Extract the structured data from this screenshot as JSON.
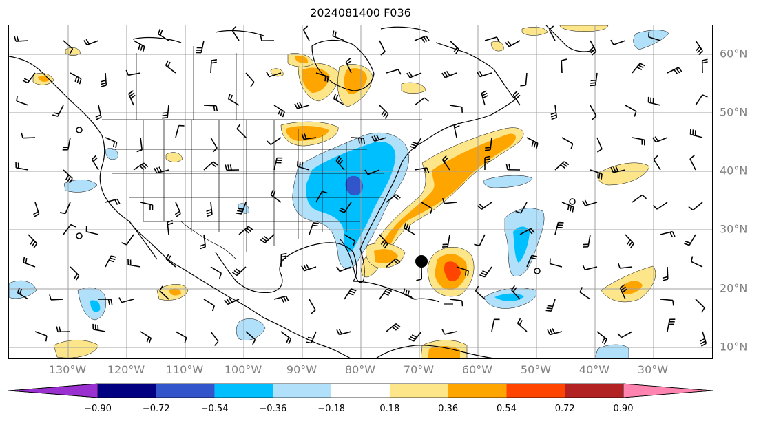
{
  "title": "2024081400 F036",
  "longitude_labels": [
    "130°W",
    "120°W",
    "110°W",
    "100°W",
    "90°W",
    "80°W",
    "70°W",
    "60°W",
    "50°W",
    "40°W",
    "30°W"
  ],
  "latitude_labels": [
    "60°N",
    "50°N",
    "40°N",
    "30°N",
    "20°N",
    "10°N"
  ],
  "colorbar": {
    "ticks": [
      "−0.90",
      "−0.72",
      "−0.54",
      "−0.36",
      "−0.18",
      "0.18",
      "0.36",
      "0.54",
      "0.72",
      "0.90"
    ],
    "colors": [
      "#9b30d0",
      "#000080",
      "#3355cc",
      "#00bfff",
      "#b0e0fa",
      "#ffffff",
      "#fde68a",
      "#ffa500",
      "#ff4500",
      "#b22222",
      "#ff85b0"
    ],
    "extend": "both"
  },
  "colors": {
    "positive_light": "#fde68a",
    "positive_mid": "#ffa500",
    "positive_strong": "#ff4500",
    "negative_light": "#b0e0fa",
    "negative_mid": "#00bfff",
    "negative_strong": "#3355cc",
    "gridline": "#a0a0a0",
    "coastline": "#000000",
    "label_gray": "#808080"
  },
  "markers": [
    "storm-center-dot"
  ]
}
